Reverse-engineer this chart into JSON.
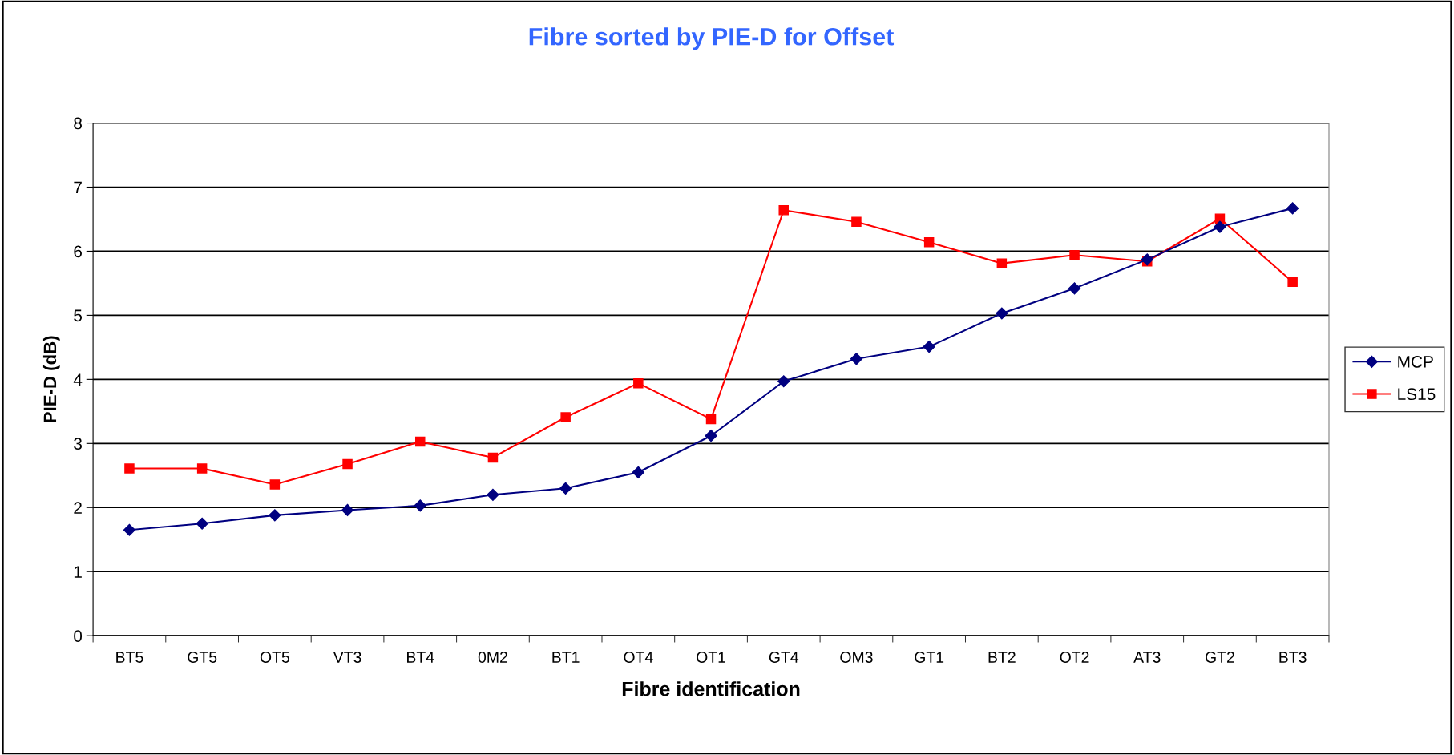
{
  "chart_data": {
    "type": "line",
    "title": "Fibre sorted by PIE-D for Offset",
    "xlabel": "Fibre identification",
    "ylabel": "PIE-D (dB)",
    "categories": [
      "BT5",
      "GT5",
      "OT5",
      "VT3",
      "BT4",
      "0M2",
      "BT1",
      "OT4",
      "OT1",
      "GT4",
      "OM3",
      "GT1",
      "BT2",
      "OT2",
      "AT3",
      "GT2",
      "BT3"
    ],
    "series": [
      {
        "name": "MCP",
        "color": "#000080",
        "marker": "diamond",
        "values": [
          1.65,
          1.75,
          1.88,
          1.96,
          2.03,
          2.2,
          2.3,
          2.55,
          3.12,
          3.97,
          4.32,
          4.51,
          5.03,
          5.42,
          5.87,
          6.38,
          6.67
        ]
      },
      {
        "name": "LS15",
        "color": "#ff0000",
        "marker": "square",
        "values": [
          2.61,
          2.61,
          2.36,
          2.68,
          3.03,
          2.78,
          3.41,
          3.94,
          3.38,
          6.64,
          6.46,
          6.14,
          5.81,
          5.94,
          5.84,
          6.51,
          5.52
        ]
      }
    ],
    "ylim": [
      0,
      8
    ],
    "yticks": [
      0,
      1,
      2,
      3,
      4,
      5,
      6,
      7,
      8
    ],
    "grid": "y",
    "legend": "right",
    "line_style": "solid"
  }
}
